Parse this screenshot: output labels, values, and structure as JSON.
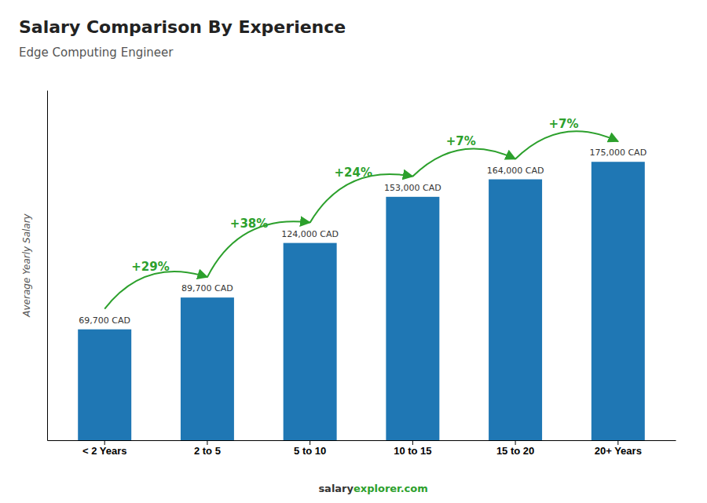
{
  "chart_data": {
    "type": "bar",
    "title": "Salary Comparison By Experience",
    "subtitle": "Edge Computing Engineer",
    "ylabel": "Average Yearly Salary",
    "categories": [
      "< 2 Years",
      "2 to 5",
      "5 to 10",
      "10 to 15",
      "15 to 20",
      "20+ Years"
    ],
    "values": [
      69700,
      89700,
      124000,
      153000,
      164000,
      175000
    ],
    "value_labels": [
      "69,700 CAD",
      "89,700 CAD",
      "124,000 CAD",
      "153,000 CAD",
      "164,000 CAD",
      "175,000 CAD"
    ],
    "data_labels": true,
    "annotations": [
      "+29%",
      "+38%",
      "+24%",
      "+7%",
      "+7%"
    ],
    "footer": [
      "salary",
      "explorer.com"
    ],
    "ylim": [
      0,
      220000
    ],
    "tick_labels": "x",
    "grid": false
  }
}
